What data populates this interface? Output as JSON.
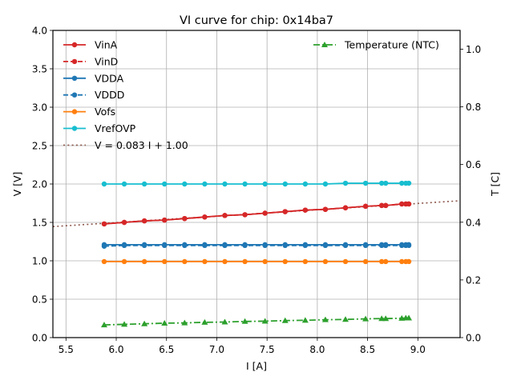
{
  "chart_data": {
    "type": "line",
    "title": "VI curve for chip: 0x14ba7",
    "xlabel": "I [A]",
    "ylabel": "V [V]",
    "y2label": "T [C]",
    "xlim": [
      5.37,
      9.42
    ],
    "ylim": [
      0.0,
      4.0
    ],
    "y2lim": [
      0.0,
      1.065
    ],
    "grid": true,
    "xticks": [
      5.5,
      6.0,
      6.5,
      7.0,
      7.5,
      8.0,
      8.5,
      9.0
    ],
    "xtick_labels": [
      "5.5",
      "6.0",
      "6.5",
      "7.0",
      "7.5",
      "8.0",
      "8.5",
      "9.0"
    ],
    "yticks": [
      0.0,
      0.5,
      1.0,
      1.5,
      2.0,
      2.5,
      3.0,
      3.5,
      4.0
    ],
    "ytick_labels": [
      "0.0",
      "0.5",
      "1.0",
      "1.5",
      "2.0",
      "2.5",
      "3.0",
      "3.5",
      "4.0"
    ],
    "y2ticks": [
      0.0,
      0.2,
      0.4,
      0.6,
      0.8,
      1.0
    ],
    "y2tick_labels": [
      "0.0",
      "0.2",
      "0.4",
      "0.6",
      "0.8",
      "1.0"
    ],
    "x": [
      5.88,
      6.08,
      6.28,
      6.48,
      6.68,
      6.88,
      7.08,
      7.28,
      7.48,
      7.68,
      7.88,
      8.08,
      8.28,
      8.48,
      8.64,
      8.68,
      8.84,
      8.88,
      8.91
    ],
    "series": [
      {
        "name": "VinA",
        "color": "#d62728",
        "linestyle": "solid",
        "marker": "circle",
        "axis": "left",
        "values": [
          1.48,
          1.5,
          1.52,
          1.53,
          1.55,
          1.57,
          1.59,
          1.6,
          1.62,
          1.64,
          1.66,
          1.67,
          1.69,
          1.71,
          1.72,
          1.72,
          1.74,
          1.74,
          1.74
        ]
      },
      {
        "name": "VinD",
        "color": "#d62728",
        "linestyle": "dashed",
        "marker": "circle",
        "axis": "left",
        "values": [
          1.48,
          1.5,
          1.52,
          1.53,
          1.55,
          1.57,
          1.59,
          1.6,
          1.62,
          1.64,
          1.66,
          1.67,
          1.69,
          1.71,
          1.72,
          1.72,
          1.74,
          1.74,
          1.74
        ]
      },
      {
        "name": "VDDA",
        "color": "#1f77b4",
        "linestyle": "solid",
        "marker": "circle",
        "axis": "left",
        "values": [
          1.21,
          1.21,
          1.21,
          1.21,
          1.21,
          1.21,
          1.21,
          1.21,
          1.21,
          1.21,
          1.21,
          1.21,
          1.21,
          1.21,
          1.21,
          1.21,
          1.21,
          1.21,
          1.21
        ]
      },
      {
        "name": "VDDD",
        "color": "#1f77b4",
        "linestyle": "dashed",
        "marker": "circle",
        "axis": "left",
        "values": [
          1.19,
          1.2,
          1.2,
          1.2,
          1.2,
          1.2,
          1.2,
          1.2,
          1.2,
          1.2,
          1.2,
          1.2,
          1.2,
          1.2,
          1.2,
          1.2,
          1.2,
          1.2,
          1.2
        ]
      },
      {
        "name": "Vofs",
        "color": "#ff7f0e",
        "linestyle": "solid",
        "marker": "circle",
        "axis": "left",
        "values": [
          0.99,
          0.99,
          0.99,
          0.99,
          0.99,
          0.99,
          0.99,
          0.99,
          0.99,
          0.99,
          0.99,
          0.99,
          0.99,
          0.99,
          0.99,
          0.99,
          0.99,
          0.99,
          0.99
        ]
      },
      {
        "name": "VrefOVP",
        "color": "#17becf",
        "linestyle": "solid",
        "marker": "circle",
        "axis": "left",
        "values": [
          2.0,
          2.0,
          2.0,
          2.0,
          2.0,
          2.0,
          2.0,
          2.0,
          2.0,
          2.0,
          2.0,
          2.0,
          2.01,
          2.01,
          2.01,
          2.01,
          2.01,
          2.01,
          2.01
        ]
      },
      {
        "name": "Temperature (NTC)",
        "color": "#2ca02c",
        "linestyle": "dashdot",
        "marker": "triangle",
        "axis": "right",
        "values": [
          0.044,
          0.046,
          0.048,
          0.05,
          0.051,
          0.053,
          0.054,
          0.056,
          0.057,
          0.059,
          0.06,
          0.062,
          0.063,
          0.065,
          0.066,
          0.066,
          0.067,
          0.068,
          0.068
        ]
      }
    ],
    "fit_line": {
      "name": "V = 0.083 I + 1.00",
      "slope": 0.083,
      "intercept": 1.0,
      "color": "#8c564b",
      "linestyle": "dotted",
      "axis": "left"
    },
    "legend_left": {
      "placement": "upper-left",
      "entries": [
        "VinA",
        "VinD",
        "VDDA",
        "VDDD",
        "Vofs",
        "VrefOVP",
        "V = 0.083 I + 1.00"
      ]
    },
    "legend_right": {
      "placement": "upper-right",
      "entries": [
        "Temperature (NTC)"
      ]
    }
  }
}
